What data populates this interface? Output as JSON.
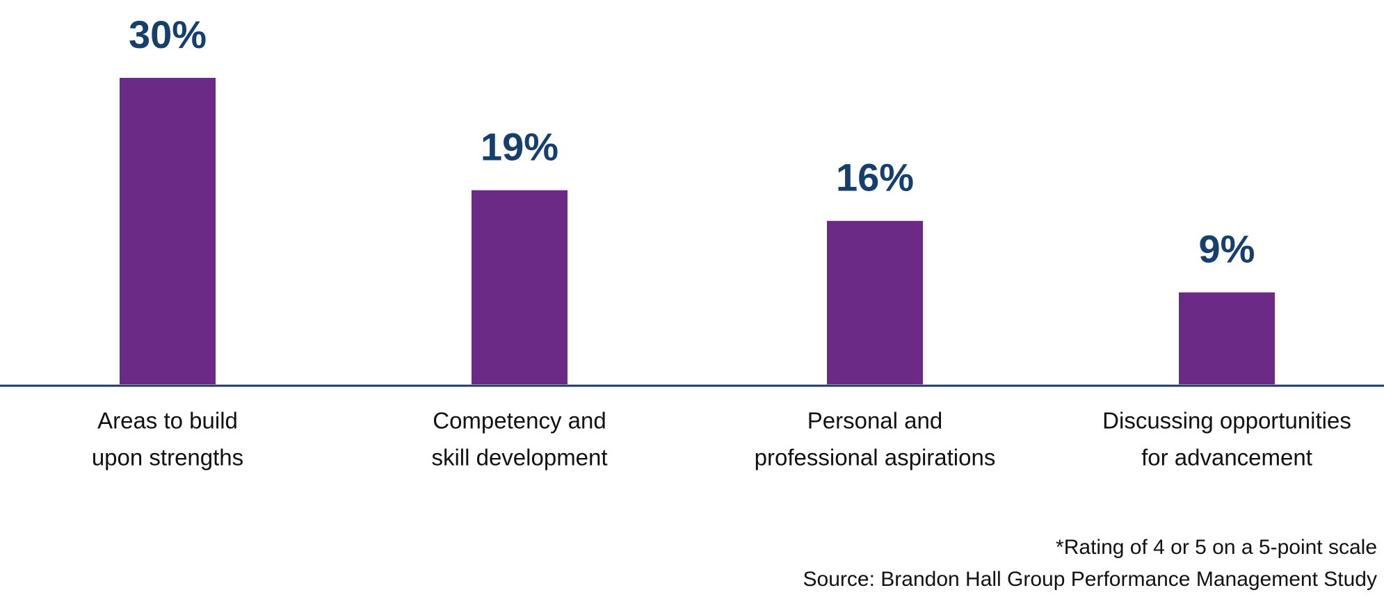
{
  "chart_data": {
    "type": "bar",
    "categories": [
      [
        "Areas to build",
        "upon strengths"
      ],
      [
        "Competency and",
        "skill development"
      ],
      [
        "Personal and",
        "professional aspirations"
      ],
      [
        "Discussing opportunities",
        "for advancement"
      ]
    ],
    "values": [
      30,
      19,
      16,
      9
    ],
    "value_labels": [
      "30%",
      "19%",
      "16%",
      "9%"
    ],
    "color": "#6a2a86",
    "notes": [
      "*Rating of 4 or 5 on a 5-point scale",
      "Source: Brandon Hall Group Performance Management Study"
    ]
  }
}
